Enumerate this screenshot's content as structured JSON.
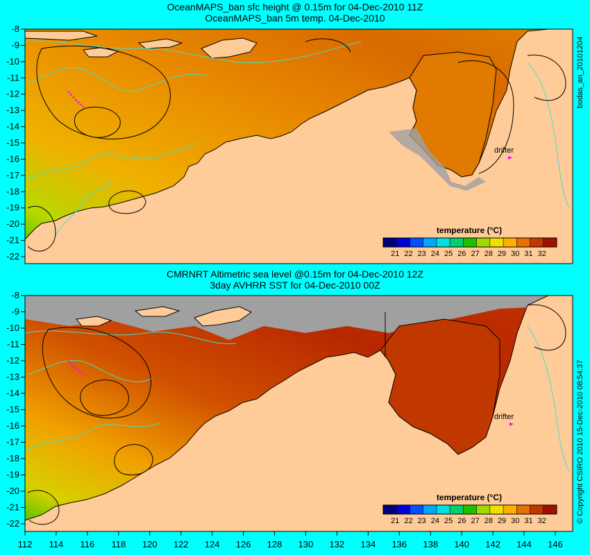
{
  "panels": [
    {
      "title1": "OceanMAPS_ban sfc height @ 0.15m for 04-Dec-2010 11Z",
      "title2": "OceanMAPS_ban 5m temp. 04-Dec-2010",
      "side_label": "bodas_an_20101204",
      "drifter_label": "drifter",
      "colorbar_title": "temperature (°C)"
    },
    {
      "title1": "CMRNRT Altimetric sea level  @0.15m  for 04-Dec-2010 12Z",
      "title2": "3day AVHRR SST for 04-Dec-2010 00Z",
      "side_label": "© Copyright CSIRO 2010   15-Dec-2010 08:54:37",
      "drifter_label": "drifter",
      "colorbar_title": "temperature (°C)"
    }
  ],
  "y_ticks": [
    "-8",
    "-9",
    "-10",
    "-11",
    "-12",
    "-13",
    "-14",
    "-15",
    "-16",
    "-17",
    "-18",
    "-19",
    "-20",
    "-21",
    "-22"
  ],
  "x_ticks": [
    "112",
    "114",
    "116",
    "118",
    "120",
    "122",
    "124",
    "126",
    "128",
    "130",
    "132",
    "134",
    "136",
    "138",
    "140",
    "142",
    "144",
    "146"
  ],
  "colorbar_ticks": [
    "21",
    "22",
    "23",
    "24",
    "25",
    "26",
    "27",
    "28",
    "29",
    "30",
    "31",
    "32"
  ],
  "colorbar_colors": [
    "#00007a",
    "#0000d8",
    "#0050ff",
    "#00a8ff",
    "#00e0e0",
    "#00d070",
    "#20c000",
    "#a0d800",
    "#f0e000",
    "#ffb000",
    "#e87000",
    "#c03800",
    "#a01000"
  ],
  "colors": {
    "background": "#00ffff",
    "land": "#ffcc99",
    "coast_outline": "#000000",
    "ocean_hot": "#d05000",
    "ocean_warm": "#f0a000",
    "ocean_cool": "#40c000",
    "contour_cyan": "#40e0d0",
    "contour_black": "#000000",
    "drifter_marker": "#ff00ff",
    "nodata_gray": "#a0a0a0"
  }
}
